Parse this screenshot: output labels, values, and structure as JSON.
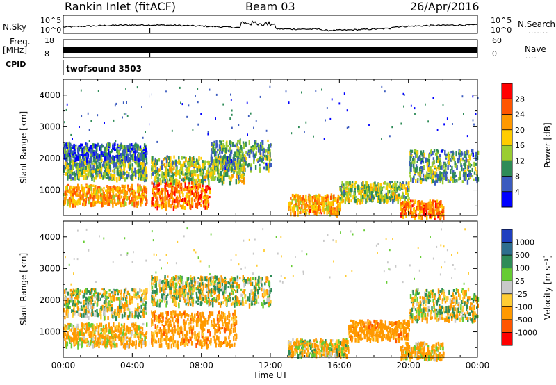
{
  "header": {
    "station": "Rankin Inlet (fitACF)",
    "beam": "Beam 03",
    "date": "26/Apr/2016"
  },
  "summary_panels": {
    "nsky_label": "N.Sky",
    "nsky_ticks": [
      "10^5",
      "10^0"
    ],
    "nsearch_label": "N.Search",
    "nsearch_ticks": [
      "10^5",
      "10^0"
    ],
    "freq_label": "Freq.",
    "freq_unit": "[MHz]",
    "freq_ticks": [
      "18",
      "8"
    ],
    "nave_label": "Nave",
    "nave_ticks": [
      "60",
      "0"
    ],
    "cpid_label": "CPID",
    "cpid_value": "twofsound 3503"
  },
  "chart_data": [
    {
      "type": "heatmap",
      "title": "",
      "xlabel": "",
      "ylabel": "Slant Range [km]",
      "ylim": [
        200,
        4500
      ],
      "y_ticks": [
        1000,
        2000,
        3000,
        4000
      ],
      "xlim": [
        0,
        24
      ],
      "colorbar_label": "Power [dB]",
      "colorbar_ticks": [
        "28",
        "24",
        "20",
        "16",
        "12",
        "8",
        "4"
      ],
      "colors": [
        "#ff0000",
        "#ff5500",
        "#ff9900",
        "#ffcc00",
        "#9acd32",
        "#2e8b57",
        "#3b5bbf",
        "#0000ff"
      ],
      "regions": [
        {
          "t0": 0.0,
          "t1": 4.8,
          "r0": 600,
          "r1": 1200,
          "value": 22
        },
        {
          "t0": 0.0,
          "t1": 4.8,
          "r0": 1400,
          "r1": 2000,
          "value": 12
        },
        {
          "t0": 0.0,
          "t1": 4.8,
          "r0": 2000,
          "r1": 2500,
          "value": 6
        },
        {
          "t0": 5.0,
          "t1": 8.5,
          "r0": 500,
          "r1": 1300,
          "value": 26
        },
        {
          "t0": 5.0,
          "t1": 10.5,
          "r0": 1300,
          "r1": 2100,
          "value": 14
        },
        {
          "t0": 8.5,
          "t1": 12.0,
          "r0": 1700,
          "r1": 2600,
          "value": 10
        },
        {
          "t0": 13.0,
          "t1": 16.0,
          "r0": 300,
          "r1": 900,
          "value": 22
        },
        {
          "t0": 16.0,
          "t1": 20.0,
          "r0": 700,
          "r1": 1300,
          "value": 14
        },
        {
          "t0": 19.5,
          "t1": 22.0,
          "r0": 200,
          "r1": 700,
          "value": 24
        },
        {
          "t0": 20.0,
          "t1": 24.0,
          "r0": 1300,
          "r1": 2300,
          "value": 10
        }
      ]
    },
    {
      "type": "heatmap",
      "title": "",
      "xlabel": "Time UT",
      "ylabel": "Slant Range [km]",
      "ylim": [
        200,
        4500
      ],
      "y_ticks": [
        1000,
        2000,
        3000,
        4000
      ],
      "xlim": [
        0,
        24
      ],
      "x_tick_labels": [
        "00:00",
        "04:00",
        "08:00",
        "12:00",
        "16:00",
        "20:00",
        "00:00"
      ],
      "colorbar_label": "Velocity [m s⁻¹]",
      "colorbar_ticks": [
        "1000",
        "500",
        "100",
        "25",
        "-25",
        "-100",
        "-500",
        "-1000"
      ],
      "colors": [
        "#1f3fbf",
        "#2e6e8e",
        "#2e8b57",
        "#66cc33",
        "#c8c8c8",
        "#ffcc33",
        "#ff9900",
        "#ff5500",
        "#ff0000"
      ],
      "regions": [
        {
          "t0": 0.0,
          "t1": 4.8,
          "r0": 1500,
          "r1": 2400,
          "value": 0
        },
        {
          "t0": 0.0,
          "t1": 4.8,
          "r0": 600,
          "r1": 1300,
          "value": -150
        },
        {
          "t0": 5.0,
          "t1": 10.0,
          "r0": 600,
          "r1": 1700,
          "value": -300
        },
        {
          "t0": 5.0,
          "t1": 12.0,
          "r0": 1900,
          "r1": 2800,
          "value": 0
        },
        {
          "t0": 13.0,
          "t1": 16.5,
          "r0": 300,
          "r1": 800,
          "value": -100
        },
        {
          "t0": 16.5,
          "t1": 20.0,
          "r0": 800,
          "r1": 1400,
          "value": -300
        },
        {
          "t0": 19.5,
          "t1": 22.0,
          "r0": 200,
          "r1": 700,
          "value": -150
        },
        {
          "t0": 20.0,
          "t1": 24.0,
          "r0": 1400,
          "r1": 2400,
          "value": 0
        }
      ]
    }
  ]
}
